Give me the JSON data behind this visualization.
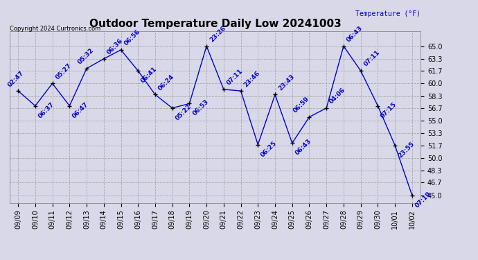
{
  "title": "Outdoor Temperature Daily Low 20241003",
  "ylabel": "Temperature (°F)",
  "copyright": "Copyright 2024 Curtronics.com",
  "line_color": "#0000cc",
  "marker_color": "#000000",
  "background_color": "#d8d8e8",
  "grid_color": "#aaaaaa",
  "text_color": "#0000cc",
  "dates": [
    "09/09",
    "09/10",
    "09/11",
    "09/12",
    "09/13",
    "09/14",
    "09/15",
    "09/16",
    "09/17",
    "09/18",
    "09/19",
    "09/20",
    "09/21",
    "09/22",
    "09/23",
    "09/24",
    "09/25",
    "09/26",
    "09/27",
    "09/28",
    "09/29",
    "09/30",
    "10/01",
    "10/02"
  ],
  "values": [
    59.0,
    57.0,
    60.0,
    57.0,
    62.0,
    63.3,
    64.5,
    61.7,
    58.5,
    56.7,
    57.3,
    65.0,
    59.2,
    59.0,
    51.8,
    58.5,
    52.0,
    55.5,
    56.7,
    65.0,
    61.7,
    57.0,
    51.7,
    45.0
  ],
  "labels": [
    "02:47",
    "06:37",
    "05:27",
    "06:47",
    "05:32",
    "06:36",
    "06:56",
    "06:41",
    "06:24",
    "05:22",
    "06:53",
    "23:26",
    "07:11",
    "23:46",
    "06:25",
    "23:43",
    "06:43",
    "06:59",
    "04:06",
    "06:43",
    "07:11",
    "07:15",
    "23:55",
    "07:19"
  ],
  "ylim": [
    44.0,
    67.0
  ],
  "yticks": [
    45.0,
    46.7,
    48.3,
    50.0,
    51.7,
    53.3,
    55.0,
    56.7,
    58.3,
    60.0,
    61.7,
    63.3,
    65.0
  ],
  "title_fontsize": 11,
  "label_fontsize": 6.5,
  "tick_fontsize": 7,
  "ylabel_fontsize": 7
}
